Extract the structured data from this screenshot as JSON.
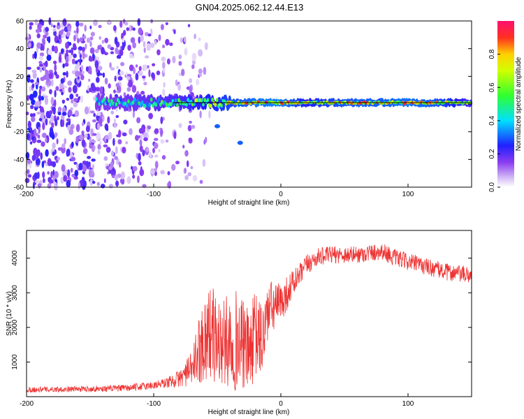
{
  "title": "GN04.2025.062.12.44.E13",
  "colors": {
    "trace": "#ee3333",
    "frame": "#000000",
    "ridge": "#000000"
  },
  "colorbar": {
    "label": "Normalized spectral amplitude",
    "ticks": [
      "0.0",
      "0.2",
      "0.4",
      "0.6",
      "0.8"
    ],
    "range": [
      0,
      1
    ],
    "colormap": "rainbow (white-purple-blue-cyan-green-yellow-red-magenta)"
  },
  "chart_data": [
    {
      "type": "heatmap",
      "title": "",
      "xlabel": "Height of straight line (km)",
      "ylabel": "Frequency (Hz)",
      "xlim": [
        -200,
        150
      ],
      "ylim": [
        -60,
        60
      ],
      "xticks": [
        "-200",
        "-100",
        "0",
        "100"
      ],
      "yticks": [
        "-60",
        "-40",
        "-20",
        "0",
        "20",
        "40",
        "60"
      ],
      "ridge": {
        "frequency": 1,
        "x_range": [
          -145,
          150
        ],
        "amplitude_profile": [
          {
            "x": -145,
            "v": 0.45
          },
          {
            "x": -120,
            "v": 0.5
          },
          {
            "x": -100,
            "v": 0.55
          },
          {
            "x": -80,
            "v": 0.6
          },
          {
            "x": -60,
            "v": 0.7
          },
          {
            "x": -40,
            "v": 0.8
          },
          {
            "x": -20,
            "v": 0.9
          },
          {
            "x": 0,
            "v": 0.95
          },
          {
            "x": 20,
            "v": 0.7
          },
          {
            "x": 40,
            "v": 0.8
          },
          {
            "x": 60,
            "v": 0.85
          },
          {
            "x": 80,
            "v": 0.85
          },
          {
            "x": 100,
            "v": 0.9
          },
          {
            "x": 120,
            "v": 0.85
          },
          {
            "x": 150,
            "v": 0.6
          }
        ]
      },
      "scatter_blobs": [
        {
          "x": -50,
          "y": -16,
          "v": 0.3
        },
        {
          "x": -32,
          "y": -28,
          "v": 0.3
        }
      ],
      "noise_region": {
        "x_range": [
          -200,
          -75
        ],
        "y_range": [
          -60,
          60
        ]
      }
    },
    {
      "type": "line",
      "title": "",
      "xlabel": "Height of straight line (km)",
      "ylabel": "SNR (10 * v/v)",
      "xlim": [
        -200,
        150
      ],
      "ylim": [
        0,
        4800
      ],
      "xticks": [
        "-200",
        "-100",
        "0",
        "100"
      ],
      "yticks": [
        "1000",
        "2000",
        "3000",
        "4000"
      ],
      "series": [
        {
          "x": [
            -200,
            -180,
            -160,
            -140,
            -120,
            -100,
            -90,
            -80,
            -70,
            -65,
            -60,
            -55,
            -50,
            -45,
            -40,
            -35,
            -30,
            -25,
            -20,
            -15,
            -10,
            -5,
            0,
            5,
            10,
            15,
            20,
            30,
            40,
            50,
            60,
            70,
            80,
            90,
            100,
            110,
            120,
            130,
            140,
            150
          ],
          "values": [
            200,
            210,
            220,
            230,
            250,
            330,
            400,
            520,
            800,
            1300,
            1700,
            1900,
            1600,
            1500,
            1700,
            1600,
            1500,
            1300,
            1800,
            1600,
            2500,
            2600,
            2700,
            3000,
            3300,
            3500,
            3800,
            4050,
            4100,
            4100,
            4100,
            4150,
            4200,
            4000,
            3900,
            3800,
            3700,
            3600,
            3550,
            3500
          ],
          "spread": [
            80,
            80,
            80,
            90,
            100,
            120,
            150,
            250,
            500,
            900,
            1300,
            1400,
            1300,
            1300,
            1400,
            1500,
            1300,
            1200,
            1300,
            1100,
            900,
            700,
            600,
            500,
            400,
            350,
            300,
            250,
            250,
            250,
            250,
            250,
            250,
            250,
            250,
            250,
            250,
            250,
            250,
            250
          ]
        }
      ]
    }
  ]
}
